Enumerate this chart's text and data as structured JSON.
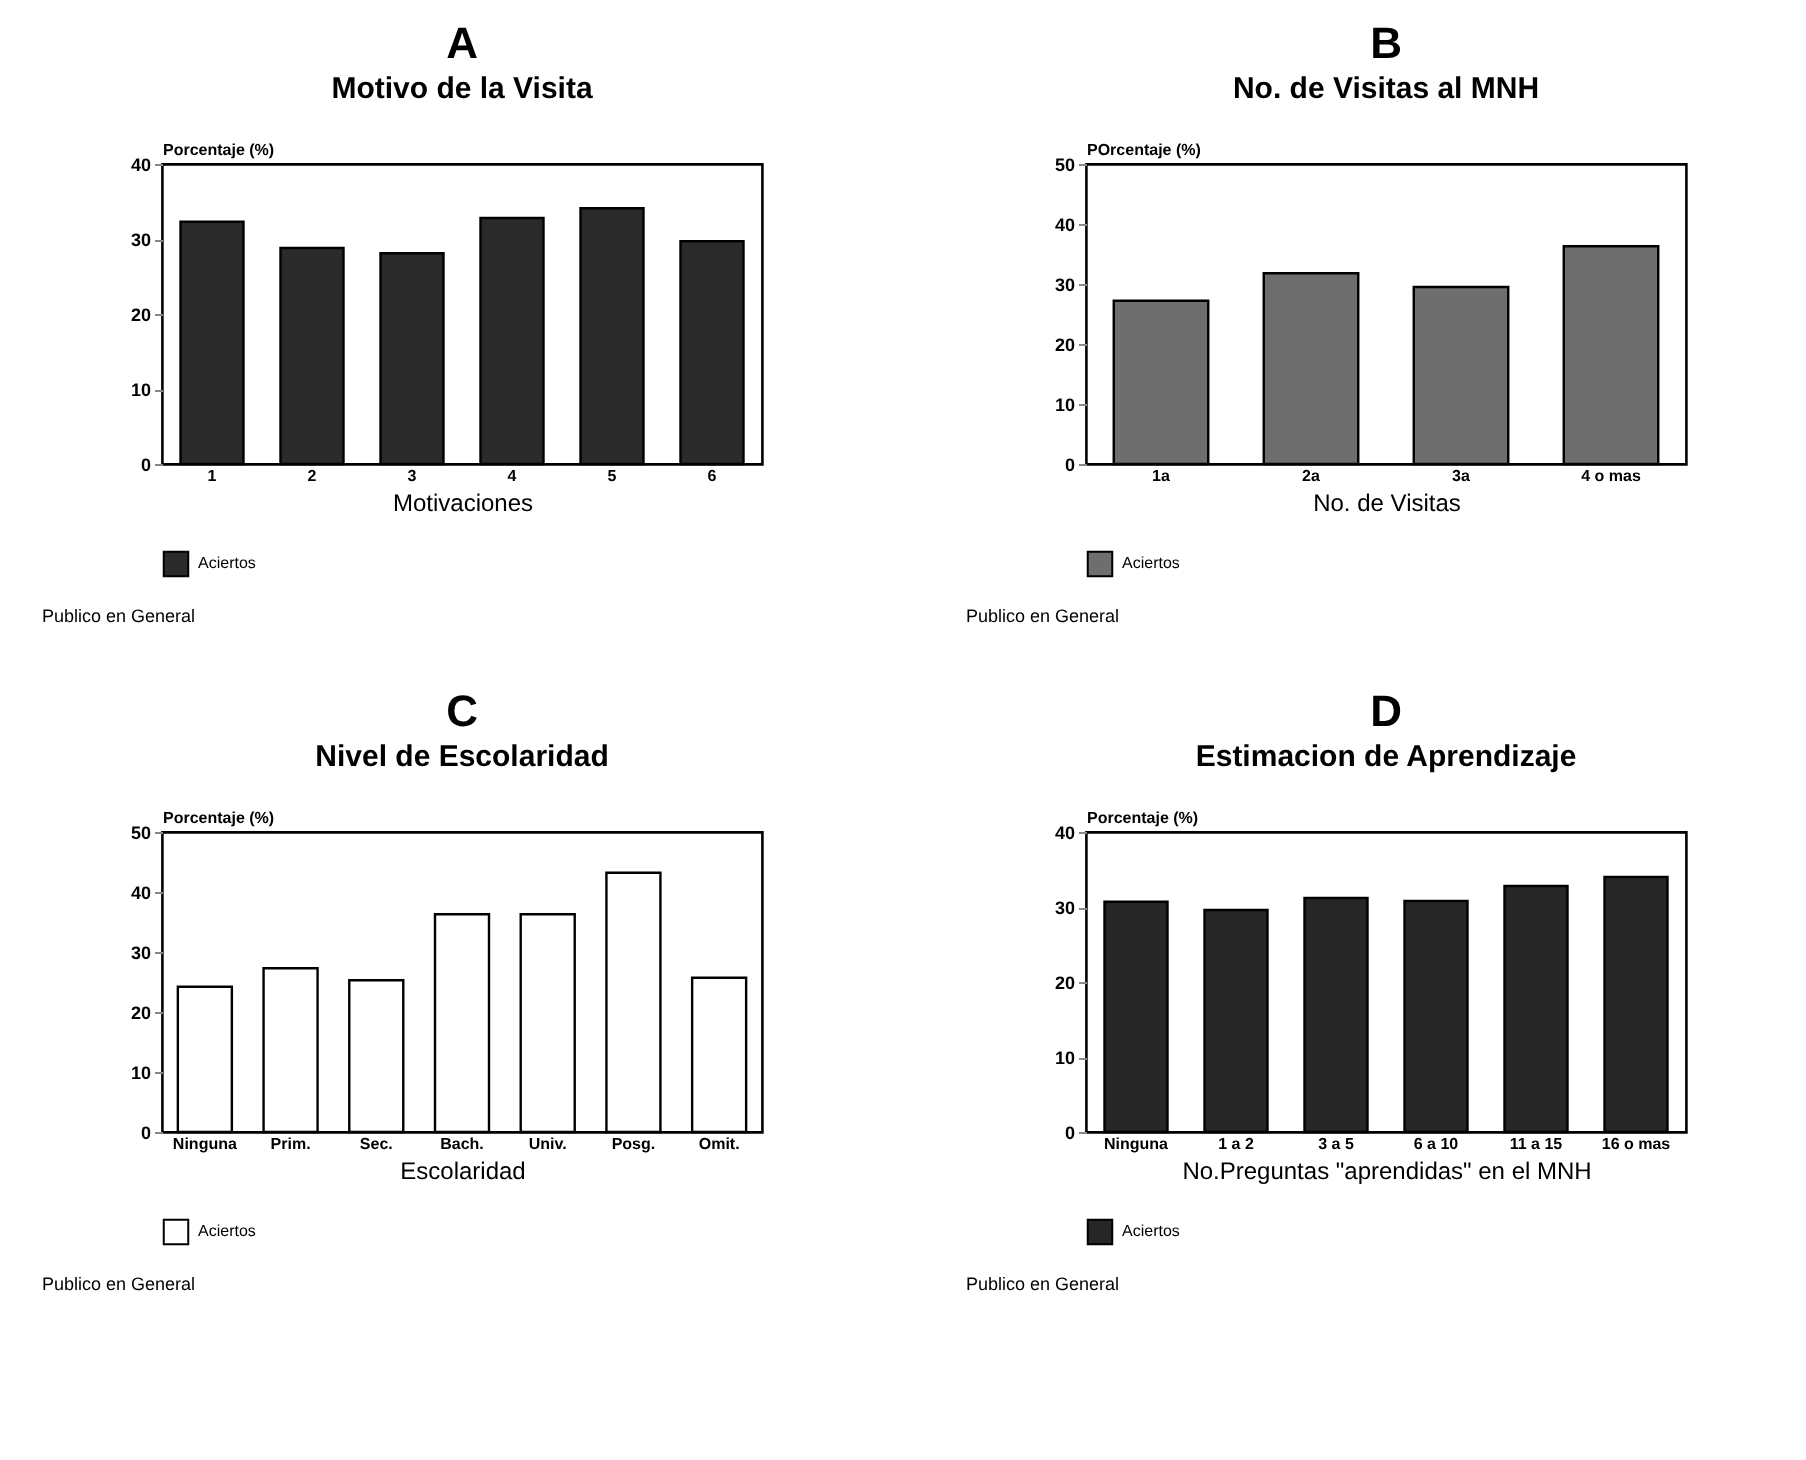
{
  "chart_data": [
    {
      "type": "bar",
      "title": "A",
      "subtitle": "Motivo de la Visita",
      "xlabel": "Motivaciones",
      "ylabel": "Porcentaje (%)",
      "categories": [
        "1",
        "2",
        "3",
        "4",
        "5",
        "6"
      ],
      "series": [
        {
          "name": "Aciertos",
          "color": "#2a2a2a",
          "values": [
            32.3,
            28.8,
            28.1,
            32.8,
            34.1,
            29.7
          ]
        }
      ],
      "ylim": [
        0,
        40
      ],
      "yticks": [
        0,
        10,
        20,
        30,
        40
      ],
      "legend": "bottom",
      "annotations": [
        "Publico en General"
      ]
    },
    {
      "type": "bar",
      "title": "B",
      "subtitle": "No. de Visitas al MNH",
      "xlabel": "No. de Visitas",
      "ylabel": "POrcentaje (%)",
      "categories": [
        "1a",
        "2a",
        "3a",
        "4 o mas"
      ],
      "series": [
        {
          "name": "Aciertos",
          "color": "#6e6e6e",
          "values": [
            27.2,
            31.8,
            29.5,
            36.3
          ]
        }
      ],
      "ylim": [
        0,
        50
      ],
      "yticks": [
        0,
        10,
        20,
        30,
        40,
        50
      ],
      "legend": "bottom",
      "annotations": [
        "Publico en General"
      ]
    },
    {
      "type": "bar",
      "title": "C",
      "subtitle": "Nivel de Escolaridad",
      "xlabel": "Escolaridad",
      "ylabel": "Porcentaje (%)",
      "categories": [
        "Ninguna",
        "Prim.",
        "Sec.",
        "Bach.",
        "Univ.",
        "Posg.",
        "Omit."
      ],
      "series": [
        {
          "name": "Aciertos",
          "color": "#ffffff",
          "values": [
            24.2,
            27.3,
            25.3,
            36.3,
            36.3,
            43.2,
            25.7
          ]
        }
      ],
      "ylim": [
        0,
        50
      ],
      "yticks": [
        0,
        10,
        20,
        30,
        40,
        50
      ],
      "legend": "bottom",
      "annotations": [
        "Publico en General"
      ]
    },
    {
      "type": "bar",
      "title": "D",
      "subtitle": "Estimacion de Aprendizaje",
      "xlabel": "No.Preguntas \"aprendidas\" en el MNH",
      "ylabel": "Porcentaje (%)",
      "categories": [
        "Ninguna",
        "1 a 2",
        "3 a 5",
        "6 a 10",
        "11 a 15",
        "16 o mas"
      ],
      "series": [
        {
          "name": "Aciertos",
          "color": "#262626",
          "values": [
            30.7,
            29.6,
            31.2,
            30.8,
            32.8,
            34.0
          ]
        }
      ],
      "ylim": [
        0,
        40
      ],
      "yticks": [
        0,
        10,
        20,
        30,
        40
      ],
      "legend": "bottom",
      "annotations": [
        "Publico en General"
      ]
    }
  ]
}
